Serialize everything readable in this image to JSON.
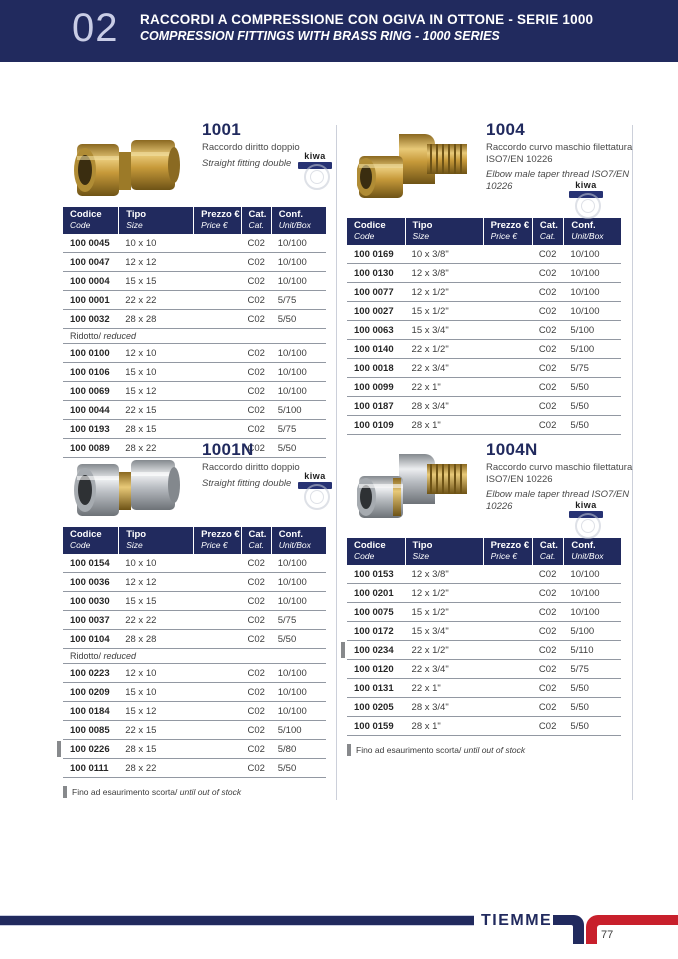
{
  "header": {
    "number": "02",
    "title_it": "RACCORDI A COMPRESSIONE CON OGIVA IN OTTONE - SERIE 1000",
    "title_en": "COMPRESSION FITTINGS WITH BRASS RING - 1000 SERIES"
  },
  "table_columns": {
    "c1": "Codice",
    "c1_sub": "Code",
    "c2": "Tipo",
    "c2_sub": "Size",
    "c3": "Prezzo €",
    "c3_sub": "Price €",
    "c4": "Cat.",
    "c4_sub": "Cat.",
    "c5": "Conf.",
    "c5_sub": "Unit/Box"
  },
  "kiwa_label": "kiwa",
  "colors": {
    "navy": "#212a5e",
    "red": "#c8202c",
    "brass": "#d2a944",
    "nickel": "#c7cacd"
  },
  "sections": [
    {
      "code": "1001",
      "desc_it": "Raccordo diritto doppio",
      "desc_en": "Straight fitting double",
      "rows": [
        {
          "type": "item",
          "code": "100 0045",
          "size": "10 x 10",
          "price": "",
          "cat": "C02",
          "conf": "10/100"
        },
        {
          "type": "item",
          "code": "100 0047",
          "size": "12 x 12",
          "price": "",
          "cat": "C02",
          "conf": "10/100"
        },
        {
          "type": "item",
          "code": "100 0004",
          "size": "15 x 15",
          "price": "",
          "cat": "C02",
          "conf": "10/100"
        },
        {
          "type": "item",
          "code": "100 0001",
          "size": "22 x 22",
          "price": "",
          "cat": "C02",
          "conf": "5/75"
        },
        {
          "type": "item",
          "code": "100 0032",
          "size": "28 x 28",
          "price": "",
          "cat": "C02",
          "conf": "5/50"
        },
        {
          "type": "divider",
          "label_it": "Ridotto/",
          "label_en": "reduced"
        },
        {
          "type": "item",
          "code": "100 0100",
          "size": "12 x 10",
          "price": "",
          "cat": "C02",
          "conf": "10/100"
        },
        {
          "type": "item",
          "code": "100 0106",
          "size": "15 x 10",
          "price": "",
          "cat": "C02",
          "conf": "10/100"
        },
        {
          "type": "item",
          "code": "100 0069",
          "size": "15 x 12",
          "price": "",
          "cat": "C02",
          "conf": "10/100"
        },
        {
          "type": "item",
          "code": "100 0044",
          "size": "22 x 15",
          "price": "",
          "cat": "C02",
          "conf": "5/100"
        },
        {
          "type": "item",
          "code": "100 0193",
          "size": "28 x 15",
          "price": "",
          "cat": "C02",
          "conf": "5/75"
        },
        {
          "type": "item",
          "code": "100 0089",
          "size": "28 x 22",
          "price": "",
          "cat": "C02",
          "conf": "5/50"
        }
      ]
    },
    {
      "code": "1004",
      "desc_it": "Raccordo curvo maschio filettatura ISO7/EN 10226",
      "desc_en": "Elbow male taper thread ISO7/EN 10226",
      "rows": [
        {
          "type": "item",
          "code": "100 0169",
          "size": "10 x 3/8\"",
          "price": "",
          "cat": "C02",
          "conf": "10/100"
        },
        {
          "type": "item",
          "code": "100 0130",
          "size": "12 x 3/8\"",
          "price": "",
          "cat": "C02",
          "conf": "10/100"
        },
        {
          "type": "item",
          "code": "100 0077",
          "size": "12 x 1/2\"",
          "price": "",
          "cat": "C02",
          "conf": "10/100"
        },
        {
          "type": "item",
          "code": "100 0027",
          "size": "15 x 1/2\"",
          "price": "",
          "cat": "C02",
          "conf": "10/100"
        },
        {
          "type": "item",
          "code": "100 0063",
          "size": "15 x 3/4\"",
          "price": "",
          "cat": "C02",
          "conf": "5/100"
        },
        {
          "type": "item",
          "code": "100 0140",
          "size": "22 x 1/2\"",
          "price": "",
          "cat": "C02",
          "conf": "5/100"
        },
        {
          "type": "item",
          "code": "100 0018",
          "size": "22 x 3/4\"",
          "price": "",
          "cat": "C02",
          "conf": "5/75"
        },
        {
          "type": "item",
          "code": "100 0099",
          "size": "22 x 1\"",
          "price": "",
          "cat": "C02",
          "conf": "5/50"
        },
        {
          "type": "item",
          "code": "100 0187",
          "size": "28 x 3/4\"",
          "price": "",
          "cat": "C02",
          "conf": "5/50"
        },
        {
          "type": "item",
          "code": "100 0109",
          "size": "28 x 1\"",
          "price": "",
          "cat": "C02",
          "conf": "5/50"
        }
      ]
    },
    {
      "code": "1001N",
      "desc_it": "Raccordo diritto doppio",
      "desc_en": "Straight fitting double",
      "rows": [
        {
          "type": "item",
          "code": "100 0154",
          "size": "10 x 10",
          "price": "",
          "cat": "C02",
          "conf": "10/100"
        },
        {
          "type": "item",
          "code": "100 0036",
          "size": "12 x 12",
          "price": "",
          "cat": "C02",
          "conf": "10/100"
        },
        {
          "type": "item",
          "code": "100 0030",
          "size": "15 x 15",
          "price": "",
          "cat": "C02",
          "conf": "10/100"
        },
        {
          "type": "item",
          "code": "100 0037",
          "size": "22 x 22",
          "price": "",
          "cat": "C02",
          "conf": "5/75"
        },
        {
          "type": "item",
          "code": "100 0104",
          "size": "28 x 28",
          "price": "",
          "cat": "C02",
          "conf": "5/50"
        },
        {
          "type": "divider",
          "label_it": "Ridotto/",
          "label_en": "reduced"
        },
        {
          "type": "item",
          "code": "100 0223",
          "size": "12 x 10",
          "price": "",
          "cat": "C02",
          "conf": "10/100"
        },
        {
          "type": "item",
          "code": "100 0209",
          "size": "15 x 10",
          "price": "",
          "cat": "C02",
          "conf": "10/100"
        },
        {
          "type": "item",
          "code": "100 0184",
          "size": "15 x 12",
          "price": "",
          "cat": "C02",
          "conf": "10/100"
        },
        {
          "type": "item",
          "code": "100 0085",
          "size": "22 x 15",
          "price": "",
          "cat": "C02",
          "conf": "5/100"
        },
        {
          "type": "item",
          "code": "100 0226",
          "size": "28 x 15",
          "price": "",
          "cat": "C02",
          "conf": "5/80",
          "marked": true
        },
        {
          "type": "item",
          "code": "100 0111",
          "size": "28 x 22",
          "price": "",
          "cat": "C02",
          "conf": "5/50"
        }
      ],
      "footnote_it": "Fino ad esaurimento scorta/",
      "footnote_en": "until out of stock"
    },
    {
      "code": "1004N",
      "desc_it": "Raccordo curvo maschio filettatura ISO7/EN 10226",
      "desc_en": "Elbow male taper thread ISO7/EN 10226",
      "rows": [
        {
          "type": "item",
          "code": "100 0153",
          "size": "12 x 3/8\"",
          "price": "",
          "cat": "C02",
          "conf": "10/100"
        },
        {
          "type": "item",
          "code": "100 0201",
          "size": "12 x 1/2\"",
          "price": "",
          "cat": "C02",
          "conf": "10/100"
        },
        {
          "type": "item",
          "code": "100 0075",
          "size": "15 x 1/2\"",
          "price": "",
          "cat": "C02",
          "conf": "10/100"
        },
        {
          "type": "item",
          "code": "100 0172",
          "size": "15 x 3/4\"",
          "price": "",
          "cat": "C02",
          "conf": "5/100"
        },
        {
          "type": "item",
          "code": "100 0234",
          "size": "22 x 1/2\"",
          "price": "",
          "cat": "C02",
          "conf": "5/110",
          "marked": true
        },
        {
          "type": "item",
          "code": "100 0120",
          "size": "22 x 3/4\"",
          "price": "",
          "cat": "C02",
          "conf": "5/75"
        },
        {
          "type": "item",
          "code": "100 0131",
          "size": "22 x 1\"",
          "price": "",
          "cat": "C02",
          "conf": "5/50"
        },
        {
          "type": "item",
          "code": "100 0205",
          "size": "28 x 3/4\"",
          "price": "",
          "cat": "C02",
          "conf": "5/50"
        },
        {
          "type": "item",
          "code": "100 0159",
          "size": "28 x 1\"",
          "price": "",
          "cat": "C02",
          "conf": "5/50"
        }
      ],
      "footnote_it": "Fino ad esaurimento scorta/",
      "footnote_en": "until out of stock"
    }
  ],
  "footer": {
    "brand": "TIEMME",
    "page": "77"
  }
}
